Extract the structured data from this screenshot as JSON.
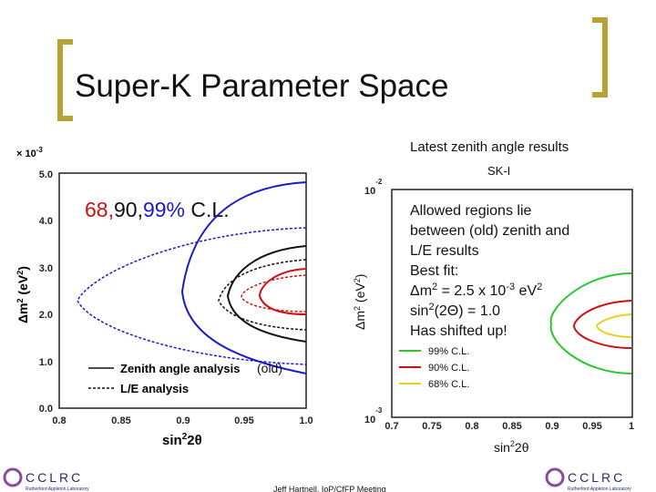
{
  "title": "Super-K Parameter Space",
  "left_plot": {
    "exponent": [
      "× 10",
      "-3"
    ],
    "yticks": [
      "0.0",
      "1.0",
      "2.0",
      "3.0",
      "4.0",
      "5.0"
    ],
    "xticks": [
      "0.8",
      "0.85",
      "0.9",
      "0.95",
      "1.0"
    ],
    "xlabel": [
      "sin",
      "2",
      "2θ"
    ],
    "ylabel": [
      "Δm",
      "2",
      " (eV",
      "2",
      ")"
    ],
    "cl_label": [
      "68,",
      "90,",
      "99%",
      " C.L."
    ],
    "legend": [
      "Zenith angle analysis",
      "L/E analysis"
    ],
    "note": "(old)"
  },
  "right_plot": {
    "heading": "Latest zenith angle results",
    "subtitle": "SK-I",
    "yticks": [
      [
        "10",
        "-2"
      ],
      [
        "10",
        "-3"
      ]
    ],
    "xticks": [
      "0.7",
      "0.75",
      "0.8",
      "0.85",
      "0.9",
      "0.95",
      "1"
    ],
    "xlabel": [
      "sin",
      "2",
      "2θ"
    ],
    "ylabel": [
      "Δm",
      "2",
      " (eV",
      "2",
      ")"
    ],
    "legend": [
      "99% C.L.",
      "90% C.L.",
      "68% C.L."
    ]
  },
  "notes": {
    "lines": [
      "Allowed regions lie",
      "between (old) zenith and",
      "L/E results",
      "Best fit:"
    ],
    "dm2": [
      "Δm",
      "2",
      " = 2.5 x 10",
      "-3",
      " eV",
      "2"
    ],
    "sin": [
      "sin",
      "2",
      "(2Θ) = 1.0"
    ],
    "shift": "Has shifted up!"
  },
  "footer": "Jeff Hartnell, IoP/CfFP Meeting",
  "logo": {
    "name": "CCLRC",
    "sub": "Rutherford Appleton Laboratory"
  }
}
